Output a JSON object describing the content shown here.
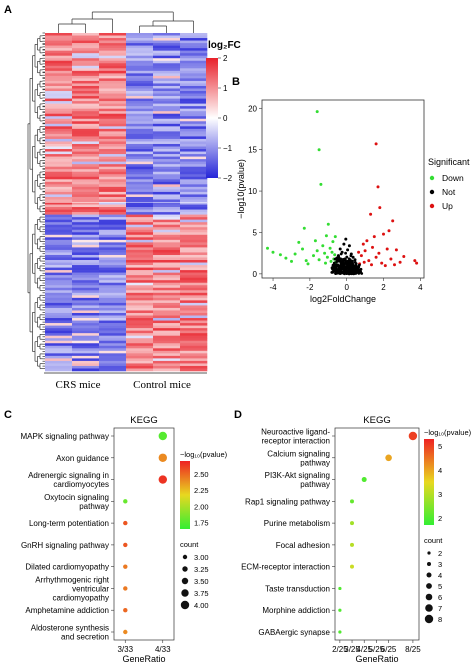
{
  "panels": {
    "a": {
      "letter": "A",
      "legend_title": "log₂FC",
      "legend_ticks": [
        "2",
        "1",
        "0",
        "−1",
        "−2"
      ],
      "legend_tick_values": [
        2,
        1,
        0,
        -1,
        -2
      ],
      "colors": {
        "high": "#e8202a",
        "mid": "#ffffff",
        "low": "#2525d8"
      },
      "group_labels": [
        "CRS mice",
        "Control mice"
      ]
    },
    "b": {
      "letter": "B"
    },
    "c": {
      "letter": "C"
    },
    "d": {
      "letter": "D"
    }
  },
  "chart_data": [
    {
      "panel": "A",
      "type": "heatmap",
      "columns_per_group": 3,
      "up_in_crs_rows": 72,
      "down_in_crs_rows": 62,
      "value_range": [
        -2,
        2
      ]
    },
    {
      "panel": "B",
      "type": "scatter",
      "xlabel": "log2FoldChange",
      "ylabel": "−log10(pvalue)",
      "xlim": [
        -4.6,
        4.2
      ],
      "ylim": [
        -0.5,
        21
      ],
      "x_ticks": [
        -4,
        -2,
        0,
        2,
        4
      ],
      "y_ticks": [
        0,
        5,
        10,
        15,
        20
      ],
      "legend_title": "Significant",
      "legend_position": "right",
      "series": [
        {
          "name": "Down",
          "color": "#33dd33",
          "points": [
            [
              -1.6,
              19.6
            ],
            [
              -1.5,
              15.0
            ],
            [
              -1.4,
              10.8
            ],
            [
              -4.3,
              3.1
            ],
            [
              -4.0,
              2.6
            ],
            [
              -3.6,
              2.3
            ],
            [
              -3.3,
              1.9
            ],
            [
              -3.0,
              1.5
            ],
            [
              -2.8,
              2.4
            ],
            [
              -2.6,
              3.8
            ],
            [
              -2.4,
              3.0
            ],
            [
              -2.3,
              5.5
            ],
            [
              -2.2,
              1.6
            ],
            [
              -2.1,
              1.2
            ],
            [
              -1.8,
              2.2
            ],
            [
              -1.7,
              4.0
            ],
            [
              -1.6,
              2.8
            ],
            [
              -1.5,
              1.7
            ],
            [
              -1.3,
              3.4
            ],
            [
              -1.2,
              2.5
            ],
            [
              -1.15,
              1.3
            ],
            [
              -1.1,
              4.6
            ],
            [
              -1.05,
              2.0
            ],
            [
              -1.0,
              6.0
            ],
            [
              -0.9,
              3.1
            ],
            [
              -0.85,
              1.5
            ],
            [
              -0.8,
              2.6
            ],
            [
              -0.75,
              3.9
            ],
            [
              -0.7,
              1.8
            ],
            [
              -0.65,
              2.3
            ],
            [
              -0.62,
              4.5
            ],
            [
              -0.6,
              1.4
            ]
          ]
        },
        {
          "name": "Not",
          "color": "#000000",
          "points": [
            [
              -0.5,
              0.4
            ],
            [
              -0.4,
              0.9
            ],
            [
              -0.3,
              1.3
            ],
            [
              -0.2,
              0.6
            ],
            [
              -0.1,
              1.8
            ],
            [
              0,
              0.3
            ],
            [
              0.1,
              1.1
            ],
            [
              0.2,
              0.7
            ],
            [
              0.3,
              1.5
            ],
            [
              0.4,
              0.5
            ],
            [
              0.5,
              1.0
            ],
            [
              -0.45,
              2.2
            ],
            [
              -0.35,
              3.0
            ],
            [
              -0.25,
              2.6
            ],
            [
              -0.15,
              3.6
            ],
            [
              -0.05,
              4.2
            ],
            [
              0.05,
              2.9
            ],
            [
              0.15,
              3.4
            ],
            [
              0.25,
              2.4
            ],
            [
              0.35,
              2.0
            ],
            [
              0.45,
              1.7
            ],
            [
              0.55,
              0.8
            ],
            [
              -0.55,
              1.1
            ],
            [
              0,
              0.1
            ],
            [
              0.2,
              0.2
            ],
            [
              -0.2,
              0.2
            ]
          ]
        },
        {
          "name": "Up",
          "color": "#dd1111",
          "points": [
            [
              1.6,
              15.7
            ],
            [
              1.7,
              10.5
            ],
            [
              1.8,
              8.0
            ],
            [
              1.3,
              7.2
            ],
            [
              2.5,
              6.4
            ],
            [
              2.3,
              5.2
            ],
            [
              2.0,
              4.8
            ],
            [
              1.5,
              4.5
            ],
            [
              1.1,
              4.0
            ],
            [
              0.9,
              3.6
            ],
            [
              1.4,
              3.2
            ],
            [
              2.2,
              3.0
            ],
            [
              2.7,
              2.9
            ],
            [
              3.1,
              2.1
            ],
            [
              3.7,
              1.6
            ],
            [
              3.8,
              1.3
            ],
            [
              0.8,
              2.2
            ],
            [
              1.0,
              2.8
            ],
            [
              1.2,
              1.6
            ],
            [
              1.6,
              2.0
            ],
            [
              1.9,
              1.3
            ],
            [
              2.4,
              1.8
            ],
            [
              2.9,
              1.4
            ],
            [
              0.7,
              1.2
            ],
            [
              0.65,
              2.6
            ],
            [
              1.35,
              1.1
            ],
            [
              1.75,
              2.5
            ],
            [
              2.1,
              1.0
            ],
            [
              2.6,
              1.1
            ],
            [
              0.95,
              1.4
            ]
          ]
        }
      ]
    },
    {
      "panel": "C",
      "type": "scatter",
      "title": "KEGG",
      "xlabel": "GeneRatio",
      "x_ticks": [
        "3/33",
        "4/33"
      ],
      "x_tick_values": [
        3,
        4
      ],
      "xlim": [
        2.7,
        4.3
      ],
      "categories": [
        "MAPK signaling pathway",
        "Axon guidance",
        "Adrenergic signaling in\ncardiomyocytes",
        "Oxytocin signaling\npathway",
        "Long-term potentiation",
        "GnRH signaling pathway",
        "Dilated cardiomyopathy",
        "Arrhythmogenic right\nventricular\ncardiomyopathy",
        "Amphetamine addiction",
        "Aldosterone synthesis\nand secretion"
      ],
      "gene_ratio": [
        4,
        4,
        4,
        3,
        3,
        3,
        3,
        3,
        3,
        3
      ],
      "neg_log10_pvalue": [
        1.75,
        2.4,
        2.65,
        1.8,
        2.55,
        2.55,
        2.45,
        2.45,
        2.5,
        2.4
      ],
      "count": [
        4,
        4,
        4,
        3,
        3,
        3,
        3,
        3,
        3,
        3
      ],
      "color_legend": {
        "title": "−log₁₀(pvalue)",
        "ticks": [
          "2.50",
          "2.25",
          "2.00",
          "1.75"
        ],
        "tick_values": [
          2.5,
          2.25,
          2.0,
          1.75
        ],
        "range": [
          1.65,
          2.7
        ]
      },
      "size_legend": {
        "title": "count",
        "values": [
          "3.00",
          "3.25",
          "3.50",
          "3.75",
          "4.00"
        ]
      }
    },
    {
      "panel": "D",
      "type": "scatter",
      "title": "KEGG",
      "xlabel": "GeneRatio",
      "x_ticks": [
        "2/25",
        "3/25",
        "4/25",
        "5/25",
        "6/25",
        "8/25"
      ],
      "x_tick_values": [
        2,
        3,
        4,
        5,
        6,
        8
      ],
      "xlim": [
        1.6,
        8.5
      ],
      "categories": [
        "Neuroactive ligand-\nreceptor interaction",
        "Calcium signaling\npathway",
        "PI3K-Akt signaling\npathway",
        "Rap1 signaling pathway",
        "Purine metabolism",
        "Focal adhesion",
        "ECM-receptor interaction",
        "Taste transduction",
        "Morphine addiction",
        "GABAergic synapse"
      ],
      "gene_ratio": [
        8,
        6,
        4,
        3,
        3,
        3,
        3,
        2,
        2,
        2
      ],
      "neg_log10_pvalue": [
        5.0,
        4.0,
        2.0,
        2.2,
        2.8,
        3.0,
        3.2,
        2.0,
        2.0,
        2.0
      ],
      "count": [
        8,
        6,
        4,
        3,
        3,
        3,
        3,
        2,
        2,
        2
      ],
      "color_legend": {
        "title": "−log₁₀(pvalue)",
        "ticks": [
          "5",
          "4",
          "3",
          "2"
        ],
        "tick_values": [
          5,
          4,
          3,
          2
        ],
        "range": [
          1.7,
          5.3
        ]
      },
      "size_legend": {
        "title": "count",
        "values": [
          "2",
          "3",
          "4",
          "5",
          "6",
          "7",
          "8"
        ]
      }
    }
  ]
}
